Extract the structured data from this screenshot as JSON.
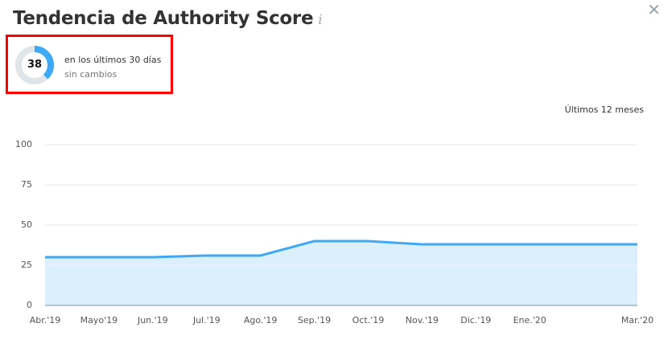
{
  "header": {
    "title": "Tendencia de Authority Score",
    "info_icon": "info-icon",
    "close_icon": "close-icon"
  },
  "score": {
    "value": "38",
    "period_text": "en los últimos 30 días",
    "change_text": "sin cambios",
    "ring_color": "#3fa9f5",
    "track_color": "#dfe5e8"
  },
  "range_label": "Últimos 12 meses",
  "chart_data": {
    "type": "area",
    "title": "Tendencia de Authority Score",
    "xlabel": "",
    "ylabel": "",
    "ylim": [
      0,
      100
    ],
    "yticks": [
      "100",
      "75",
      "50",
      "25",
      "0"
    ],
    "categories": [
      "Abr.'19",
      "Mayo'19",
      "Jun.'19",
      "Jul.'19",
      "Ago.'19",
      "Sep.'19",
      "Oct.'19",
      "Nov.'19",
      "Dic.'19",
      "Ene.'20",
      "Feb.'20",
      "Mar.'20"
    ],
    "x_tick_labels": [
      "Abr.'19",
      "Mayo'19",
      "Jun.'19",
      "Jul.'19",
      "Ago.'19",
      "Sep.'19",
      "Oct.'19",
      "Nov.'19",
      "Dic.'19",
      "Ene.'20",
      "",
      "Mar.'20"
    ],
    "series": [
      {
        "name": "Authority Score",
        "values": [
          30,
          30,
          30,
          31,
          31,
          40,
          40,
          38,
          38,
          38,
          38,
          38
        ],
        "color": "#3fa9f5",
        "fill": "#d6ecfb"
      }
    ],
    "grid": true,
    "legend": "none"
  }
}
